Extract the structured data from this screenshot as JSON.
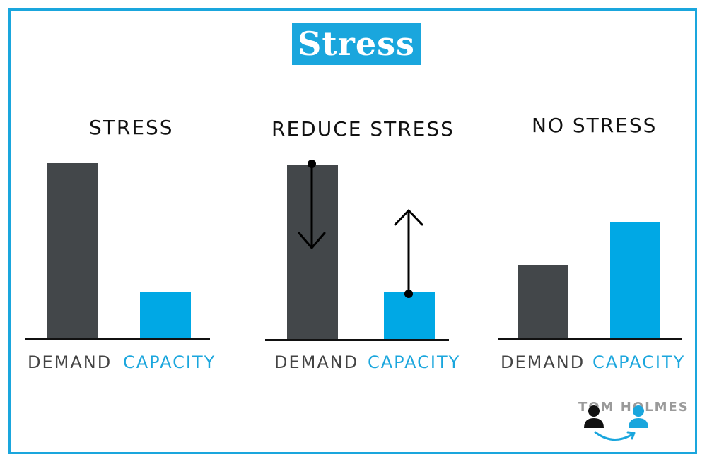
{
  "title": "Stress",
  "panels": [
    {
      "title": "STRESS",
      "demand_label": "DEMAND",
      "capacity_label": "CAPACITY"
    },
    {
      "title": "REDUCE STRESS",
      "demand_label": "DEMAND",
      "capacity_label": "CAPACITY"
    },
    {
      "title": "NO STRESS",
      "demand_label": "DEMAND",
      "capacity_label": "CAPACITY"
    }
  ],
  "logo": {
    "text": "TOM HOLMES"
  },
  "colors": {
    "accent": "#1aa6dd",
    "demand": "#43474a",
    "capacity": "#00a8e5"
  }
}
